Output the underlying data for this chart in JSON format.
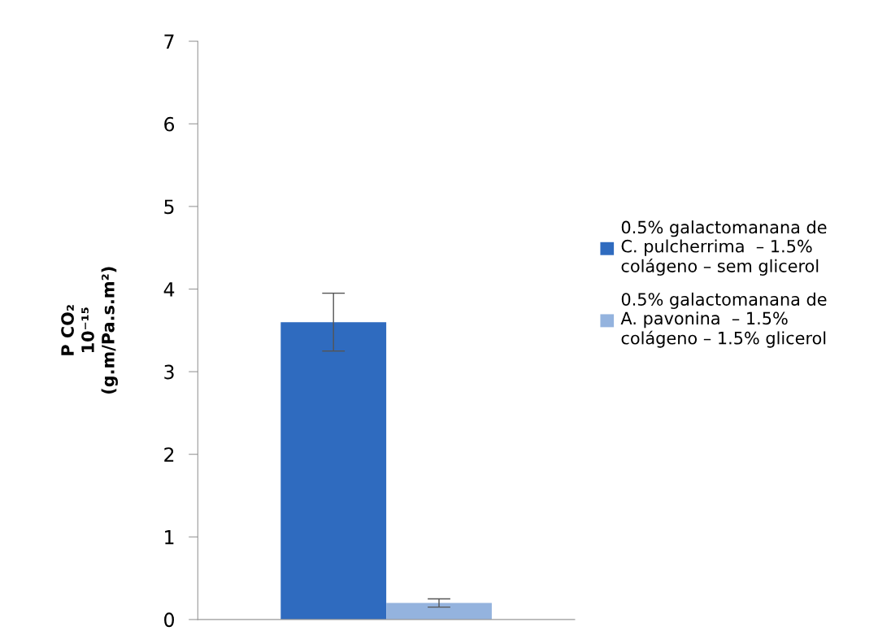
{
  "chart_data": {
    "type": "bar",
    "ylabel": "P CO₂\n10⁻¹⁵\n(g.m/Pa.s.m²)",
    "categories": [
      null
    ],
    "series": [
      {
        "name": "0.5% galactomanana de\nC. pulcherrima  – 1.5%\ncolágeno – sem glicerol",
        "color": "#2f6bbf",
        "values": [
          3.6
        ],
        "errors": [
          0.35
        ]
      },
      {
        "name": "0.5% galactomanana de\nA. pavonina  – 1.5%\ncolágeno – 1.5% glicerol",
        "color": "#94b3de",
        "values": [
          0.2
        ],
        "errors": [
          0.05
        ]
      }
    ],
    "ylim": [
      0,
      7
    ],
    "yticks": [
      0,
      1,
      2,
      3,
      4,
      5,
      6,
      7
    ],
    "grid": false,
    "legend": "right"
  }
}
